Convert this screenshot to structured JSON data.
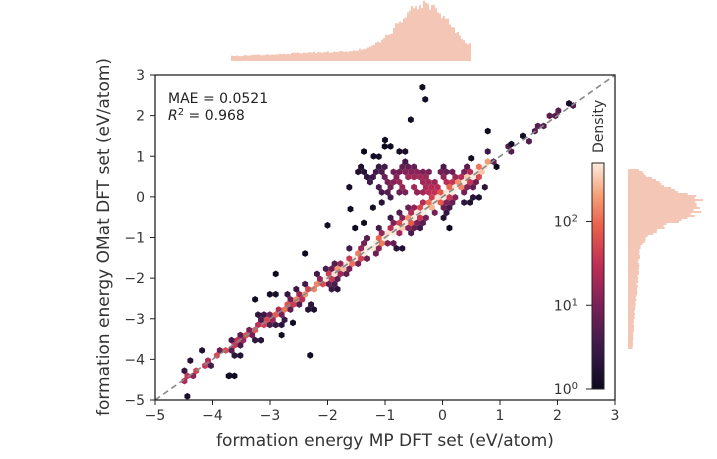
{
  "chart_data": {
    "type": "hexbin",
    "xlabel": "formation energy MP DFT set (eV/atom)",
    "ylabel": "formation energy OMat DFT set (eV/atom)",
    "xlim": [
      -5,
      3
    ],
    "ylim": [
      -5,
      3
    ],
    "xticks": [
      "−5",
      "−4",
      "−3",
      "−2",
      "−1",
      "0",
      "1",
      "2",
      "3"
    ],
    "yticks": [
      "−5",
      "−4",
      "−3",
      "−2",
      "−1",
      "0",
      "1",
      "2",
      "3"
    ],
    "parity_line": {
      "style": "dashed",
      "color": "#888888",
      "from": [
        -5,
        -5
      ],
      "to": [
        3,
        3
      ]
    },
    "annotation": {
      "mae_label": "MAE = 0.0521",
      "r2_prefix": "R",
      "r2_exp": "2",
      "r2_suffix": " = 0.968"
    },
    "colorbar": {
      "label": "Density",
      "scale": "log",
      "range": [
        1,
        500
      ],
      "ticks": [
        {
          "base": "10",
          "exp": "0",
          "value": 1
        },
        {
          "base": "10",
          "exp": "1",
          "value": 10
        },
        {
          "base": "10",
          "exp": "2",
          "value": 100
        }
      ]
    },
    "colors": {
      "low": "#1a1029",
      "mid": "#c12e57",
      "high": "#faebdd",
      "marginal": "#e98d6b",
      "frame": "#222222"
    },
    "density_profile": {
      "description_free_values_only": true,
      "main_band_center_offset": 0.0,
      "cluster_center": [
        -0.5,
        0.4
      ],
      "outliers": [
        [
          -0.35,
          2.7
        ],
        [
          -0.3,
          2.4
        ],
        [
          2.2,
          2.3
        ],
        [
          1.4,
          1.5
        ],
        [
          1.2,
          1.3
        ],
        [
          -2.6,
          -3.1
        ],
        [
          -3.7,
          -4.4
        ],
        [
          -2.3,
          -3.9
        ],
        [
          0.5,
          0.95
        ],
        [
          -1.6,
          -0.3
        ],
        [
          -2.0,
          -0.7
        ],
        [
          -1.2,
          1.0
        ],
        [
          -0.55,
          1.9
        ],
        [
          -1.0,
          1.4
        ]
      ]
    }
  }
}
